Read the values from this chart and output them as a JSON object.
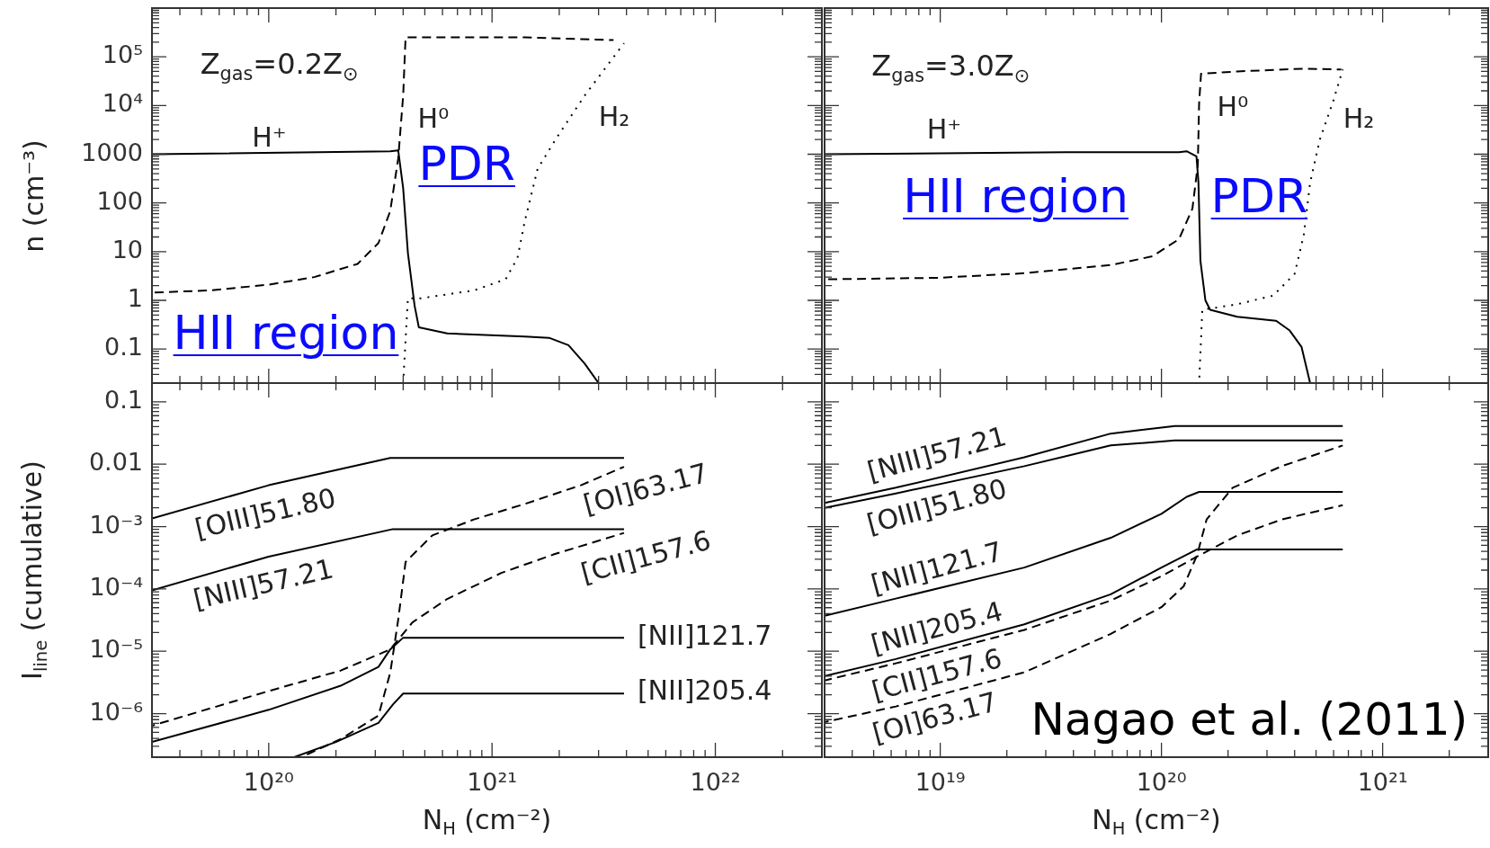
{
  "chart_data": [
    {
      "type": "line",
      "ylabel": "n (cm⁻³)",
      "log": "xy",
      "grid": false,
      "marker": "none",
      "tick_labels": "y",
      "annotations": [
        "Z$_{gas}$=0.2Z$_{⊙}$",
        "PDR",
        "HII region"
      ],
      "xlim": [
        3e+19,
        3e+22
      ],
      "xticks": [
        {
          "value": 1e+20,
          "label": null
        },
        {
          "value": 1e+21,
          "label": null
        },
        {
          "value": 1e+22,
          "label": null
        }
      ],
      "ylim": [
        0.02,
        1000000.0
      ],
      "yticks": [
        0.1,
        1,
        10,
        100,
        1000,
        {
          "value": 10000.0,
          "label": "10⁴"
        },
        {
          "value": 100000.0,
          "label": "10⁵"
        }
      ],
      "series": [
        {
          "name": "H⁺",
          "color": "#000000",
          "line_style": "solid",
          "x": [
            3e+19,
            3.5e+20,
            3.8e+20,
            4e+20,
            4.2e+20,
            4.5e+20,
            4.7e+20,
            6.3e+20,
            1.4e+21,
            1.8e+21,
            2.2e+21,
            2.6e+21,
            3e+21
          ],
          "values": [
            1000,
            1150,
            1200,
            200,
            9.4,
            0.78,
            0.28,
            0.21,
            0.18,
            0.17,
            0.12,
            0.05,
            0.02
          ]
        },
        {
          "name": "H⁰",
          "color": "#000000",
          "line_style": "dashed",
          "x": [
            3e+19,
            5.5e+19,
            1e+20,
            1.6e+20,
            2.5e+20,
            3.1e+20,
            3.5e+20,
            3.8e+20,
            4e+20,
            4.1e+20,
            4.4e+20,
            1.4e+21,
            3.5e+21
          ],
          "values": [
            1.44,
            1.6,
            2.1,
            3.0,
            5.6,
            15,
            68,
            810,
            16000.0,
            250000.0,
            250000.0,
            250000.0,
            220000.0
          ]
        },
        {
          "name": "H₂",
          "color": "#000000",
          "line_style": "dotted",
          "x": [
            4e+20,
            4.2e+20,
            4.8e+20,
            8.3e+20,
            1.15e+21,
            1.3e+21,
            1.4e+21,
            1.6e+21,
            1.95e+21,
            2.6e+21,
            3.9e+21
          ],
          "values": [
            0.02,
            1.1,
            1.1,
            1.6,
            2.7,
            7.4,
            41,
            500,
            2200,
            16000.0,
            190000.0
          ]
        }
      ]
    },
    {
      "type": "line",
      "log": "xy",
      "grid": false,
      "marker": "none",
      "tick_labels": false,
      "annotations": [
        "Z$_{gas}$=3.0Z$_{⊙}$",
        "HII region",
        "PDR"
      ],
      "xlim": [
        3e+18,
        3e+21
      ],
      "xticks": [
        {
          "value": 1e+19,
          "label": null
        },
        {
          "value": 1e+20,
          "label": null
        },
        {
          "value": 1e+21,
          "label": null
        }
      ],
      "ylim": [
        0.02,
        1000000.0
      ],
      "yticks": [
        {
          "value": 0.1,
          "label": null
        },
        {
          "value": 1,
          "label": null
        },
        {
          "value": 10,
          "label": null
        },
        {
          "value": 100,
          "label": null
        },
        {
          "value": 1000,
          "label": null
        },
        {
          "value": 10000.0,
          "label": null
        },
        {
          "value": 100000.0,
          "label": null
        }
      ],
      "series": [
        {
          "name": "H⁺",
          "color": "#000000",
          "line_style": "solid",
          "x": [
            3e+18,
            3.7e+19,
            1.2e+20,
            1.3e+20,
            1.44e+20,
            1.47e+20,
            1.5e+20,
            1.58e+20,
            1.66e+20,
            2.2e+20,
            3.3e+20,
            3.8e+20,
            4.3e+20,
            4.7e+20
          ],
          "values": [
            1000,
            1100,
            1100,
            1150,
            900,
            260,
            6.5,
            1.0,
            0.64,
            0.46,
            0.38,
            0.24,
            0.11,
            0.02
          ]
        },
        {
          "name": "H⁰",
          "color": "#000000",
          "line_style": "dashed",
          "x": [
            3e+18,
            9.8e+18,
            2.4e+19,
            5.9e+19,
            9.1e+19,
            1.2e+20,
            1.38e+20,
            1.46e+20,
            1.48e+20,
            1.51e+20,
            2.2e+20,
            4.4e+20,
            6.5e+20
          ],
          "values": [
            2.7,
            2.9,
            3.6,
            5.3,
            8,
            18,
            76,
            600,
            11000.0,
            45000.0,
            50000.0,
            57000.0,
            55000.0
          ]
        },
        {
          "name": "H₂",
          "color": "#000000",
          "line_style": "dotted",
          "x": [
            1.48e+20,
            1.53e+20,
            2.2e+20,
            3.2e+20,
            4e+20,
            4.4e+20,
            4.7e+20,
            5.2e+20,
            6e+20,
            6.6e+20
          ],
          "values": [
            0.02,
            0.64,
            0.83,
            1.25,
            3.5,
            22,
            260,
            2000,
            13000.0,
            55000.0
          ]
        }
      ]
    },
    {
      "type": "line",
      "xlabel": "N$_{H}$ (cm⁻²)",
      "ylabel": "I$_{line}$ (cumulative)",
      "log": "xy",
      "grid": false,
      "marker": "none",
      "xlim": [
        3e+19,
        3e+22
      ],
      "xticks": [
        {
          "value": 1e+20,
          "label": "10²⁰"
        },
        {
          "value": 1e+21,
          "label": "10²¹"
        },
        {
          "value": 1e+22,
          "label": "10²²"
        }
      ],
      "ylim": [
        2e-07,
        0.2
      ],
      "yticks": [
        {
          "value": 1e-06,
          "label": "10⁻⁶"
        },
        {
          "value": 1e-05,
          "label": "10⁻⁵"
        },
        {
          "value": 0.0001,
          "label": "10⁻⁴"
        },
        {
          "value": 0.001,
          "label": "10⁻³"
        },
        0.01,
        0.1
      ],
      "series": [
        {
          "name": "[OIII]51.80",
          "color": "#000000",
          "line_style": "solid",
          "x": [
            3e+19,
            1e+20,
            3.5e+20,
            3.9e+21
          ],
          "values": [
            0.00135,
            0.0046,
            0.0126,
            0.0126
          ]
        },
        {
          "name": "[NIII]57.21",
          "color": "#000000",
          "line_style": "solid",
          "x": [
            3e+19,
            1e+20,
            3.6e+20,
            3.9e+21
          ],
          "values": [
            9.5e-05,
            0.00033,
            0.00091,
            0.00091
          ]
        },
        {
          "name": "[NII]121.7",
          "color": "#000000",
          "line_style": "solid",
          "x": [
            3e+19,
            1e+20,
            2.1e+20,
            3.1e+20,
            3.5e+20,
            4e+20,
            3.9e+21
          ],
          "values": [
            3.5e-07,
            1.15e-06,
            2.8e-06,
            5.6e-06,
            1.07e-05,
            1.65e-05,
            1.65e-05
          ]
        },
        {
          "name": "[NII]205.4",
          "color": "#000000",
          "line_style": "solid",
          "x": [
            1.3e+20,
            2e+20,
            3.1e+20,
            3.6e+20,
            4e+20,
            3.9e+21
          ],
          "values": [
            2e-07,
            3.5e-07,
            7.1e-07,
            1.4e-06,
            2.1e-06,
            2.1e-06
          ]
        },
        {
          "name": "[OI]63.17",
          "color": "#000000",
          "line_style": "dashed",
          "x": [
            1.4e+20,
            2.1e+20,
            3.1e+20,
            3.5e+20,
            3.8e+20,
            4.1e+20,
            5.4e+20,
            8.3e+20,
            1.4e+21,
            2.5e+21,
            3.9e+21
          ],
          "values": [
            2e-07,
            3.9e-07,
            9.3e-07,
            4.5e-06,
            3.2e-05,
            0.00027,
            0.00072,
            0.0013,
            0.0023,
            0.0046,
            0.0091
          ]
        },
        {
          "name": "[CII]157.6",
          "color": "#000000",
          "line_style": "dashed",
          "x": [
            3e+19,
            1e+20,
            2.1e+20,
            3.5e+20,
            4.4e+20,
            6.3e+20,
            1.1e+21,
            1.9e+21,
            3.9e+21
          ],
          "values": [
            6.4e-07,
            2.3e-06,
            4.9e-06,
            1.07e-05,
            2.9e-05,
            6.9e-05,
            0.00018,
            0.00036,
            0.00079
          ]
        }
      ]
    },
    {
      "type": "line",
      "xlabel": "N$_{H}$ (cm⁻²)",
      "log": "xy",
      "grid": false,
      "marker": "none",
      "tick_labels": "x",
      "annotations": [
        "Nagao et al. (2011)"
      ],
      "xlim": [
        3e+18,
        3e+21
      ],
      "xticks": [
        {
          "value": 1e+19,
          "label": "10¹⁹"
        },
        {
          "value": 1e+20,
          "label": "10²⁰"
        },
        {
          "value": 1e+21,
          "label": "10²¹"
        }
      ],
      "ylim": [
        2e-07,
        0.2
      ],
      "yticks": [
        {
          "value": 1e-06,
          "label": null
        },
        {
          "value": 1e-05,
          "label": null
        },
        {
          "value": 0.0001,
          "label": null
        },
        {
          "value": 0.001,
          "label": null
        },
        {
          "value": 0.01,
          "label": null
        },
        {
          "value": 0.1,
          "label": null
        }
      ],
      "series": [
        {
          "name": "[NIII]57.21",
          "color": "#000000",
          "line_style": "solid",
          "x": [
            3e+18,
            6.3e+18,
            2.4e+19,
            5.9e+19,
            1.15e+20,
            6.6e+20
          ],
          "values": [
            0.0024,
            0.0042,
            0.0129,
            0.031,
            0.041,
            0.041
          ]
        },
        {
          "name": "[OIII]51.80",
          "color": "#000000",
          "line_style": "solid",
          "x": [
            3e+18,
            6.3e+18,
            2.4e+19,
            5.9e+19,
            1.15e+20,
            6.6e+20
          ],
          "values": [
            0.002,
            0.0034,
            0.0093,
            0.02,
            0.024,
            0.024
          ]
        },
        {
          "name": "[NII]121.7",
          "color": "#000000",
          "line_style": "solid",
          "x": [
            3e+18,
            6.3e+18,
            2.4e+19,
            5.9e+19,
            1e+20,
            1.3e+20,
            1.48e+20,
            6.6e+20
          ],
          "values": [
            3.7e-05,
            7e-05,
            0.00022,
            0.00066,
            0.0016,
            0.003,
            0.0036,
            0.0036
          ]
        },
        {
          "name": "[NII]205.4",
          "color": "#000000",
          "line_style": "solid",
          "x": [
            3e+18,
            6.3e+18,
            2.4e+19,
            5.9e+19,
            1e+20,
            1.45e+20,
            6.6e+20
          ],
          "values": [
            4e-06,
            7.5e-06,
            2.7e-05,
            8.2e-05,
            0.00022,
            0.00043,
            0.00043
          ]
        },
        {
          "name": "[CII]157.6",
          "color": "#000000",
          "line_style": "dashed",
          "x": [
            3e+18,
            6.3e+18,
            2.4e+19,
            5.9e+19,
            1e+20,
            1.45e+20,
            2.2e+20,
            3.5e+20,
            6.6e+20
          ],
          "values": [
            3.4e-06,
            6.4e-06,
            2.2e-05,
            6.5e-05,
            0.00016,
            0.00033,
            0.00072,
            0.0013,
            0.0022
          ]
        },
        {
          "name": "[OI]63.17",
          "color": "#000000",
          "line_style": "dashed",
          "x": [
            3e+18,
            6.3e+18,
            2.4e+19,
            5.9e+19,
            1e+20,
            1.26e+20,
            1.45e+20,
            1.6e+20,
            2.1e+20,
            3.5e+20,
            6.6e+20
          ],
          "values": [
            7.3e-07,
            1.3e-06,
            4.6e-06,
            1.9e-05,
            5.1e-05,
            0.00011,
            0.00035,
            0.0013,
            0.0042,
            0.0093,
            0.02
          ]
        }
      ]
    }
  ]
}
